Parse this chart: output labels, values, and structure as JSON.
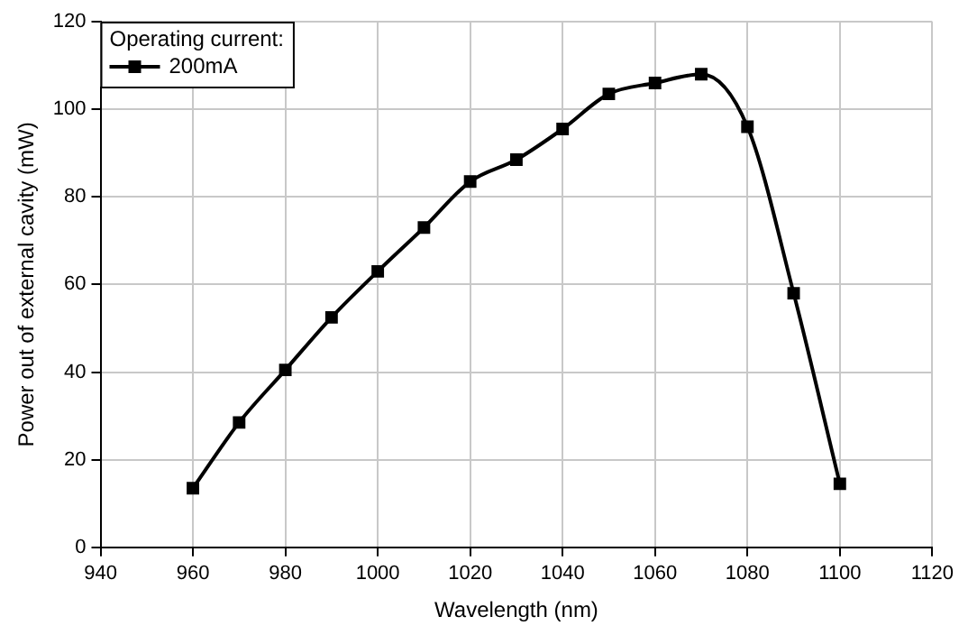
{
  "chart_data": {
    "type": "line",
    "xlabel": "Wavelength (nm)",
    "ylabel": "Power out of external cavity (mW)",
    "legend_title": "Operating current:",
    "x": [
      960,
      970,
      980,
      990,
      1000,
      1010,
      1020,
      1030,
      1040,
      1050,
      1060,
      1070,
      1080,
      1090,
      1100
    ],
    "series": [
      {
        "name": "200mA",
        "color": "#000000",
        "values": [
          13.5,
          28.5,
          40.5,
          52.5,
          63,
          73,
          83.5,
          88.5,
          95.5,
          103.5,
          106,
          108,
          96,
          58,
          14.5
        ]
      }
    ],
    "xlim": [
      940,
      1120
    ],
    "xticks": [
      940,
      960,
      980,
      1000,
      1020,
      1040,
      1060,
      1080,
      1100,
      1120
    ],
    "ylim": [
      0,
      120
    ],
    "yticks": [
      0,
      20,
      40,
      60,
      80,
      100,
      120
    ],
    "grid": true,
    "legend": "top left",
    "marker": "square",
    "line_style": "solid"
  }
}
